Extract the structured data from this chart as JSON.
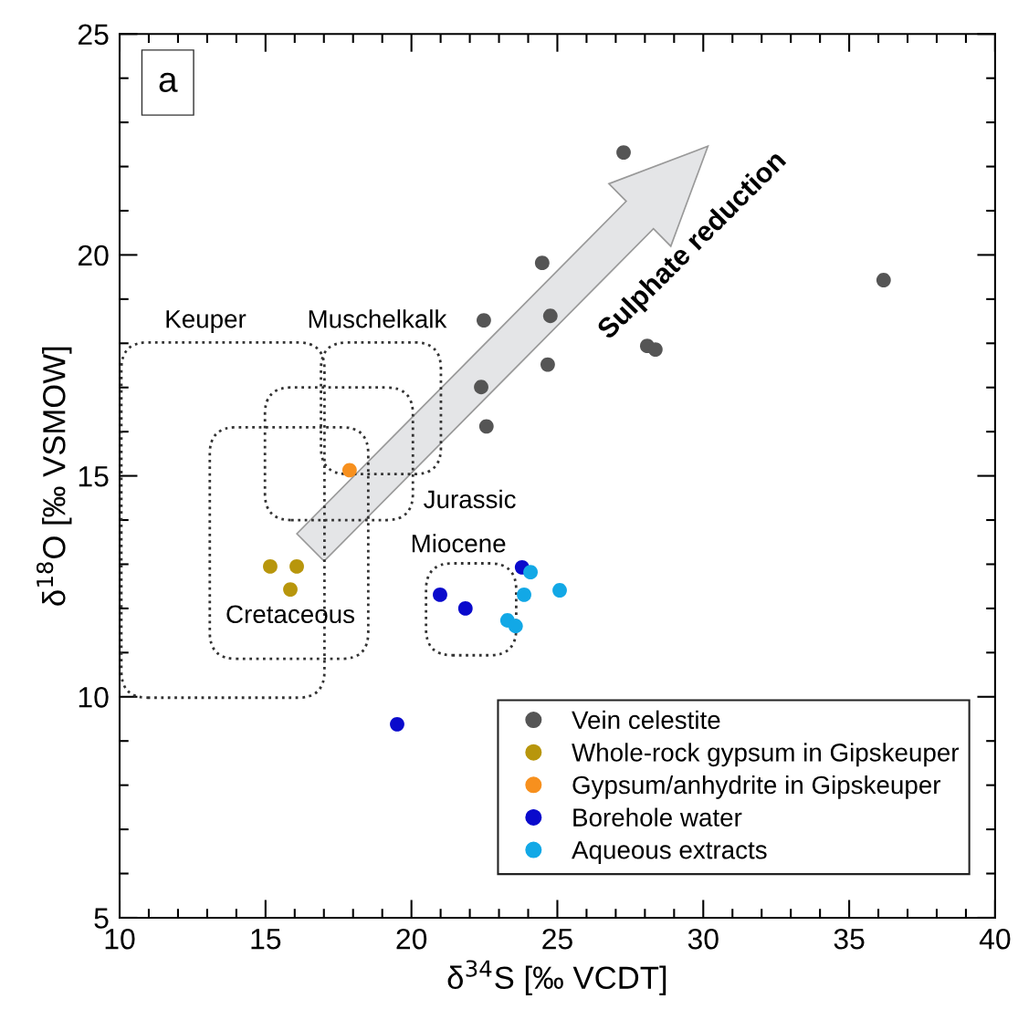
{
  "chart_data": {
    "type": "scatter",
    "xlabel": "δ$^{34}$S [‰ VCDT]",
    "ylabel": "δ$^{18}$O [‰ VSMOW]",
    "xlim": [
      10,
      40
    ],
    "ylim": [
      5,
      25
    ],
    "xticks": [
      10,
      {
        "value": 11,
        "label": null
      },
      {
        "value": 12,
        "label": null
      },
      {
        "value": 13,
        "label": null
      },
      {
        "value": 14,
        "label": null
      },
      15,
      {
        "value": 16,
        "label": null
      },
      {
        "value": 17,
        "label": null
      },
      {
        "value": 18,
        "label": null
      },
      {
        "value": 19,
        "label": null
      },
      20,
      {
        "value": 21,
        "label": null
      },
      {
        "value": 22,
        "label": null
      },
      {
        "value": 23,
        "label": null
      },
      {
        "value": 24,
        "label": null
      },
      25,
      {
        "value": 26,
        "label": null
      },
      {
        "value": 27,
        "label": null
      },
      {
        "value": 28,
        "label": null
      },
      {
        "value": 29,
        "label": null
      },
      30,
      {
        "value": 31,
        "label": null
      },
      {
        "value": 32,
        "label": null
      },
      {
        "value": 33,
        "label": null
      },
      {
        "value": 34,
        "label": null
      },
      35,
      {
        "value": 36,
        "label": null
      },
      {
        "value": 37,
        "label": null
      },
      {
        "value": 38,
        "label": null
      },
      {
        "value": 39,
        "label": null
      },
      40
    ],
    "yticks": [
      5,
      {
        "value": 6,
        "label": null
      },
      {
        "value": 7,
        "label": null
      },
      {
        "value": 8,
        "label": null
      },
      {
        "value": 9,
        "label": null
      },
      10,
      {
        "value": 11,
        "label": null
      },
      {
        "value": 12,
        "label": null
      },
      {
        "value": 13,
        "label": null
      },
      {
        "value": 14,
        "label": null
      },
      15,
      {
        "value": 16,
        "label": null
      },
      {
        "value": 17,
        "label": null
      },
      {
        "value": 18,
        "label": null
      },
      {
        "value": 19,
        "label": null
      },
      20,
      {
        "value": 21,
        "label": null
      },
      {
        "value": 22,
        "label": null
      },
      {
        "value": 23,
        "label": null
      },
      {
        "value": 24,
        "label": null
      },
      25
    ],
    "marker": "circle",
    "legend": "bottom right",
    "series": [
      {
        "name": "Vein celestite",
        "color": "#555555",
        "x": [
          27.27,
          24.48,
          22.48,
          24.76,
          24.67,
          22.39,
          22.57,
          28.08,
          28.36,
          36.18
        ],
        "values": [
          22.32,
          19.82,
          18.52,
          18.62,
          17.52,
          17.01,
          16.12,
          17.94,
          17.86,
          19.43
        ]
      },
      {
        "name": "Whole-rock gypsum in Gipskeuper",
        "color": "#b8960c",
        "x": [
          15.16,
          16.07,
          15.85
        ],
        "values": [
          12.95,
          12.95,
          12.43
        ]
      },
      {
        "name": "Gypsum/anhydrite in Gipskeuper",
        "color": "#f7901e",
        "x": [
          17.88
        ],
        "values": [
          15.13
        ]
      },
      {
        "name": "Borehole water",
        "color": "#0a0acc",
        "x": [
          20.98,
          21.85,
          23.79,
          19.51
        ],
        "values": [
          12.31,
          12.0,
          12.93,
          9.38
        ]
      },
      {
        "name": "Aqueous extracts",
        "color": "#12a8e6",
        "x": [
          24.08,
          23.86,
          25.08,
          23.29,
          23.57
        ],
        "values": [
          12.82,
          12.31,
          12.41,
          11.73,
          11.6
        ]
      }
    ],
    "annotations": [
      "a",
      "Sulphate reduction",
      "Keuper",
      "Muschelkalk",
      "Jurassic",
      "Miocene",
      "Cretaceous"
    ]
  }
}
